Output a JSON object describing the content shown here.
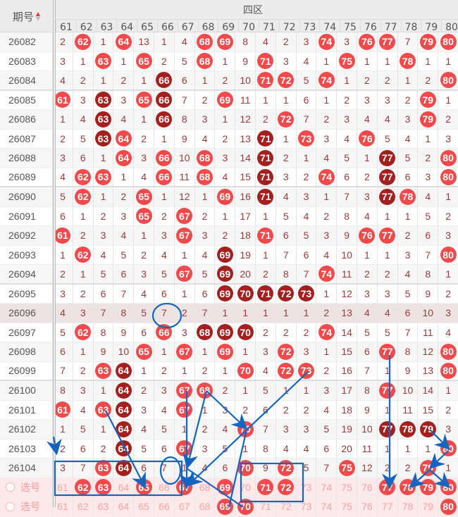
{
  "header": {
    "period_label": "期号",
    "zone_label": "四区",
    "columns": [
      "61",
      "62",
      "63",
      "64",
      "65",
      "66",
      "67",
      "68",
      "69",
      "70",
      "71",
      "72",
      "73",
      "74",
      "75",
      "76",
      "77",
      "78",
      "79",
      "80"
    ]
  },
  "colors": {
    "ball_red": "#f24a4a",
    "ball_dark": "#a3201f",
    "annotation": "#1565c0"
  },
  "rows": [
    {
      "id": "26082",
      "cells": [
        "2",
        "62r",
        "1",
        "64r",
        "13",
        "1",
        "4",
        "68r",
        "69r",
        "8",
        "4",
        "2",
        "3",
        "74r",
        "3",
        "76r",
        "77r",
        "7",
        "79r",
        "80r"
      ]
    },
    {
      "id": "26083",
      "cells": [
        "3",
        "1",
        "63r",
        "1",
        "65r",
        "2",
        "5",
        "68r",
        "1",
        "9",
        "71r",
        "3",
        "4",
        "1",
        "75r",
        "1",
        "1",
        "78r",
        "1",
        "1"
      ]
    },
    {
      "id": "26084",
      "cells": [
        "4",
        "2",
        "1",
        "2",
        "1",
        "66d",
        "6",
        "1",
        "2",
        "10",
        "71r",
        "72r",
        "5",
        "74r",
        "1",
        "2",
        "2",
        "1",
        "2",
        "80r"
      ]
    },
    {
      "id": "26085",
      "cells": [
        "61r",
        "3",
        "63d",
        "3",
        "65r",
        "66d",
        "7",
        "2",
        "69r",
        "11",
        "1",
        "1",
        "6",
        "1",
        "2",
        "3",
        "3",
        "2",
        "79r",
        "1"
      ]
    },
    {
      "id": "26086",
      "cells": [
        "1",
        "4",
        "63d",
        "4",
        "1",
        "66d",
        "8",
        "3",
        "1",
        "12",
        "2",
        "72r",
        "7",
        "2",
        "3",
        "4",
        "4",
        "3",
        "79r",
        "2"
      ]
    },
    {
      "id": "26087",
      "cells": [
        "2",
        "5",
        "63d",
        "64r",
        "2",
        "1",
        "9",
        "4",
        "2",
        "13",
        "71d",
        "1",
        "73r",
        "3",
        "4",
        "76r",
        "5",
        "4",
        "1",
        "3"
      ]
    },
    {
      "id": "26088",
      "cells": [
        "3",
        "6",
        "1",
        "64r",
        "3",
        "66r",
        "10",
        "68r",
        "3",
        "14",
        "71d",
        "2",
        "1",
        "4",
        "5",
        "1",
        "77d",
        "5",
        "2",
        "80r"
      ]
    },
    {
      "id": "26089",
      "cells": [
        "4",
        "62r",
        "63r",
        "1",
        "4",
        "66r",
        "11",
        "68r",
        "4",
        "15",
        "71d",
        "3",
        "2",
        "74r",
        "6",
        "2",
        "77d",
        "6",
        "3",
        "80r"
      ]
    },
    {
      "id": "26090",
      "cells": [
        "5",
        "62r",
        "1",
        "2",
        "65r",
        "1",
        "12",
        "1",
        "69r",
        "16",
        "71d",
        "4",
        "3",
        "1",
        "7",
        "3",
        "77d",
        "78r",
        "4",
        "1"
      ]
    },
    {
      "id": "26091",
      "cells": [
        "6",
        "1",
        "2",
        "3",
        "65r",
        "2",
        "67r",
        "2",
        "1",
        "17",
        "1",
        "5",
        "4",
        "2",
        "8",
        "4",
        "1",
        "1",
        "5",
        "2"
      ]
    },
    {
      "id": "26092",
      "cells": [
        "61r",
        "2",
        "3",
        "4",
        "1",
        "3",
        "67r",
        "3",
        "2",
        "18",
        "71r",
        "6",
        "5",
        "3",
        "9",
        "76r",
        "77r",
        "2",
        "6",
        "3"
      ]
    },
    {
      "id": "26093",
      "cells": [
        "1",
        "62r",
        "4",
        "5",
        "2",
        "4",
        "1",
        "4",
        "69d",
        "19",
        "1",
        "7",
        "6",
        "4",
        "10",
        "1",
        "1",
        "3",
        "7",
        "80r"
      ]
    },
    {
      "id": "26094",
      "cells": [
        "2",
        "1",
        "5",
        "6",
        "3",
        "5",
        "67r",
        "5",
        "69d",
        "20",
        "2",
        "8",
        "7",
        "74r",
        "11",
        "2",
        "2",
        "4",
        "8",
        "1"
      ]
    },
    {
      "id": "26095",
      "cells": [
        "3",
        "2",
        "6",
        "7",
        "4",
        "6",
        "1",
        "6",
        "69d",
        "70d",
        "71d",
        "72d",
        "73d",
        "1",
        "12",
        "3",
        "3",
        "5",
        "9",
        "2"
      ]
    },
    {
      "id": "26096",
      "cells": [
        "4",
        "3",
        "7",
        "8",
        "5",
        "7",
        "2",
        "7",
        "1",
        "1",
        "1",
        "1",
        "1",
        "2",
        "13",
        "4",
        "4",
        "6",
        "10",
        "3"
      ]
    },
    {
      "id": "26097",
      "cells": [
        "5",
        "62r",
        "8",
        "9",
        "6",
        "66r",
        "3",
        "68d",
        "69d",
        "70d",
        "2",
        "2",
        "2",
        "74r",
        "14",
        "5",
        "5",
        "7",
        "11",
        "4"
      ]
    },
    {
      "id": "26098",
      "cells": [
        "6",
        "1",
        "9",
        "10",
        "65r",
        "1",
        "67r",
        "1",
        "69r",
        "1",
        "3",
        "72r",
        "3",
        "1",
        "15",
        "6",
        "77r",
        "8",
        "12",
        "80r"
      ]
    },
    {
      "id": "26099",
      "cells": [
        "7",
        "2",
        "63r",
        "64d",
        "1",
        "2",
        "1",
        "2",
        "1",
        "70r",
        "4",
        "72r",
        "73r",
        "2",
        "16",
        "7",
        "1",
        "9",
        "13",
        "80r"
      ]
    },
    {
      "id": "26100",
      "cells": [
        "8",
        "3",
        "1",
        "64d",
        "2",
        "3",
        "67r",
        "68r",
        "2",
        "1",
        "5",
        "1",
        "1",
        "3",
        "17",
        "8",
        "77r",
        "10",
        "14",
        "1"
      ]
    },
    {
      "id": "26101",
      "cells": [
        "61r",
        "4",
        "63r",
        "64d",
        "3",
        "4",
        "67r",
        "1",
        "3",
        "2",
        "6",
        "2",
        "2",
        "4",
        "18",
        "9",
        "1",
        "11",
        "15",
        "2"
      ]
    },
    {
      "id": "26102",
      "cells": [
        "1",
        "5",
        "1",
        "64d",
        "4",
        "5",
        "1",
        "2",
        "4",
        "70r",
        "7",
        "3",
        "3",
        "5",
        "19",
        "10",
        "77d",
        "78d",
        "79d",
        "3"
      ]
    },
    {
      "id": "26103",
      "cells": [
        "2",
        "6",
        "2",
        "64d",
        "5",
        "6",
        "67r",
        "3",
        "5",
        "1",
        "8",
        "4",
        "4",
        "6",
        "20",
        "11",
        "1",
        "1",
        "1",
        "80r"
      ]
    },
    {
      "id": "26104",
      "cells": [
        "3",
        "7",
        "63r",
        "64d",
        "6",
        "7",
        "1",
        "4",
        "6",
        "70r",
        "9",
        "72r",
        "5",
        "7",
        "75r",
        "12",
        "2",
        "2",
        "79r",
        "1"
      ]
    }
  ],
  "highlight_row": "26096",
  "pick_rows": [
    {
      "label": "选号",
      "cells": [
        "61",
        "62r",
        "63r",
        "64",
        "65r",
        "66",
        "67r",
        "68",
        "69r",
        "70",
        "71r",
        "72r",
        "73",
        "74",
        "75",
        "76",
        "77r",
        "78r",
        "79r",
        "80r"
      ]
    },
    {
      "label": "选号",
      "cells": [
        "61",
        "62",
        "63",
        "64",
        "65",
        "66",
        "67",
        "68",
        "69r",
        "70r",
        "71",
        "72",
        "73",
        "74",
        "75",
        "76",
        "77",
        "78",
        "79",
        "80r"
      ]
    }
  ]
}
